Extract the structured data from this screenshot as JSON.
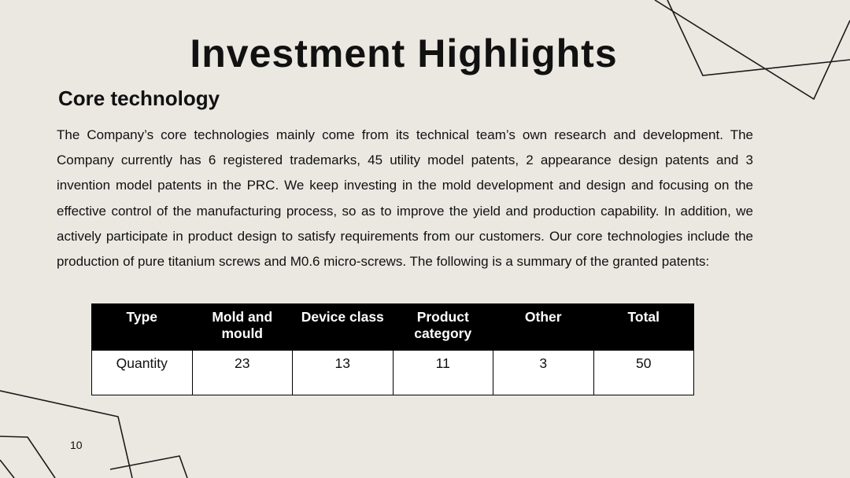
{
  "slide": {
    "title": "Investment Highlights",
    "section_heading": "Core technology",
    "paragraph": "The Company’s core technologies mainly come from its technical team’s own research and development. The Company currently has 6 registered trademarks, 45 utility model patents, 2 appearance design patents and 3 invention model patents in the PRC. We keep investing in the mold development and design and focusing on the effective control of the manufacturing process, so as to improve the yield and production capability. In addition, we actively participate in product design to satisfy requirements from our customers. Our core technologies include the production of pure titanium screws and M0.6 micro-screws. The following is a summary of the granted patents:",
    "page_number": "10"
  },
  "table": {
    "headers": [
      "Type",
      "Mold and mould",
      "Device class",
      "Product category",
      "Other",
      "Total"
    ],
    "rows": [
      [
        "Quantity",
        "23",
        "13",
        "11",
        "3",
        "50"
      ]
    ]
  }
}
